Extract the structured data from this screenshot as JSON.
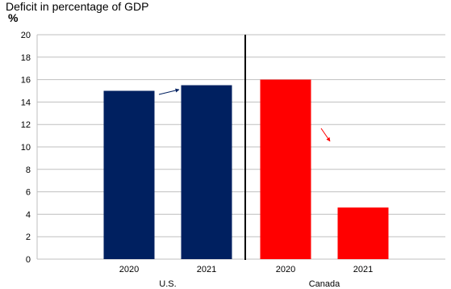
{
  "chart_data": {
    "type": "bar",
    "title": "Deficit in percentage of GDP",
    "ylabel": "%",
    "ylim": [
      0,
      20
    ],
    "yticks": [
      0,
      2,
      4,
      6,
      8,
      10,
      12,
      14,
      16,
      18,
      20
    ],
    "grid": true,
    "groups": [
      {
        "name": "U.S.",
        "color": "#002060",
        "bars": [
          {
            "category": "2020",
            "value": 15.0
          },
          {
            "category": "2021",
            "value": 15.5
          }
        ],
        "arrow_color": "#002060",
        "trend": "up"
      },
      {
        "name": "Canada",
        "color": "#ff0000",
        "bars": [
          {
            "category": "2020",
            "value": 16.0
          },
          {
            "category": "2021",
            "value": 4.6
          }
        ],
        "arrow_color": "#ff0000",
        "trend": "down"
      }
    ]
  }
}
